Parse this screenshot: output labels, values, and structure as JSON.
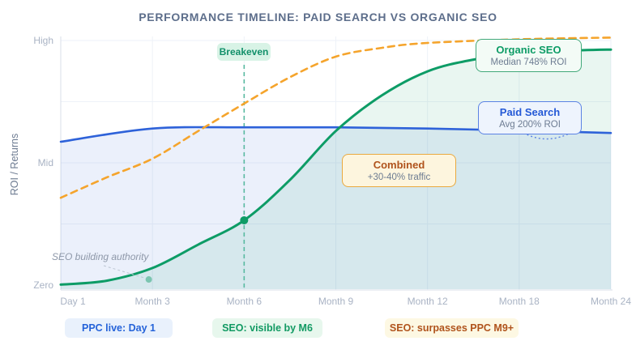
{
  "title": "PERFORMANCE TIMELINE: PAID SEARCH VS ORGANIC SEO",
  "colors": {
    "title": "#5d6e8b",
    "paid_search_line": "#2e62d9",
    "organic_seo_line": "#0d9c66",
    "combined_line": "#f5a42c",
    "breakeven_dash": "#58b9a0",
    "axis": "#d9dfea",
    "gridline": "#eef2f8",
    "tick_label": "#a9b3c4"
  },
  "chart_data": {
    "type": "line",
    "title": "PERFORMANCE TIMELINE: PAID SEARCH VS ORGANIC SEO",
    "xlabel": "",
    "ylabel": "ROI / Returns",
    "x_categories": [
      "Day 1",
      "Month 3",
      "Month 6",
      "Month 9",
      "Month 12",
      "Month 18",
      "Month 24"
    ],
    "y_ticks": [
      {
        "label": "Zero",
        "v": 0
      },
      {
        "label": "Mid",
        "v": 0.5
      },
      {
        "label": "High",
        "v": 1
      }
    ],
    "ylim_note": "qualitative scale: 0 = Zero, 0.5 = Mid, 1 = High",
    "grid": true,
    "breakeven_x": 2,
    "series": [
      {
        "id": "paid-search",
        "name": "Paid Search",
        "style": "solid",
        "color": "#2e62d9",
        "width": 2.6,
        "fill": "rgba(61,108,220,0.10)",
        "points": [
          [
            0,
            0.586
          ],
          [
            1,
            0.64
          ],
          [
            2,
            0.645
          ],
          [
            3,
            0.645
          ],
          [
            4,
            0.64
          ],
          [
            5,
            0.632
          ],
          [
            6,
            0.622
          ]
        ]
      },
      {
        "id": "organic-seo",
        "name": "Organic SEO",
        "style": "solid",
        "color": "#0d9c66",
        "width": 3,
        "fill": "rgba(13,156,102,0.09)",
        "points": [
          [
            0,
            0.002
          ],
          [
            0.5,
            0.018
          ],
          [
            1,
            0.07
          ],
          [
            1.5,
            0.166
          ],
          [
            2,
            0.265
          ],
          [
            2.5,
            0.43
          ],
          [
            3,
            0.63
          ],
          [
            3.5,
            0.775
          ],
          [
            4,
            0.874
          ],
          [
            4.5,
            0.922
          ],
          [
            5,
            0.947
          ],
          [
            5.5,
            0.958
          ],
          [
            6,
            0.963
          ]
        ]
      },
      {
        "id": "combined",
        "name": "Combined",
        "style": "dashed",
        "color": "#f5a42c",
        "width": 2.6,
        "dash": "8 6",
        "points": [
          [
            0,
            0.357
          ],
          [
            0.5,
            0.44
          ],
          [
            1,
            0.517
          ],
          [
            1.5,
            0.63
          ],
          [
            2,
            0.742
          ],
          [
            2.5,
            0.85
          ],
          [
            3,
            0.934
          ],
          [
            3.5,
            0.97
          ],
          [
            4,
            0.99
          ],
          [
            5,
            1.005
          ],
          [
            6,
            1.012
          ]
        ]
      }
    ],
    "markers": [
      {
        "id": "seo-visible-dot",
        "x": 2,
        "v": 0.265,
        "r": 5,
        "color": "#0d9c66"
      },
      {
        "id": "seo-authority-dot",
        "x": 0.96,
        "v": 0.023,
        "r": 4,
        "color": "#0d9c66",
        "opacity": 0.45
      }
    ]
  },
  "annotations": {
    "breakeven": {
      "label": "Breakeven"
    },
    "organic_seo": {
      "title": "Organic SEO",
      "subtitle": "Median 748% ROI"
    },
    "paid_search": {
      "title": "Paid Search",
      "subtitle": "Avg 200% ROI"
    },
    "combined": {
      "title": "Combined",
      "subtitle": "+30-40% traffic"
    },
    "seo_authority": {
      "text": "SEO building authority"
    }
  },
  "footer_pills": [
    {
      "label": "PPC live: Day 1",
      "bg": "#e9f1fc",
      "color": "#2563d9"
    },
    {
      "label": "SEO: visible by M6",
      "bg": "#e7f7ed",
      "color": "#129a63"
    },
    {
      "label": "SEO: surpasses PPC M9+",
      "bg": "#fdf8e3",
      "color": "#b0531c"
    }
  ]
}
